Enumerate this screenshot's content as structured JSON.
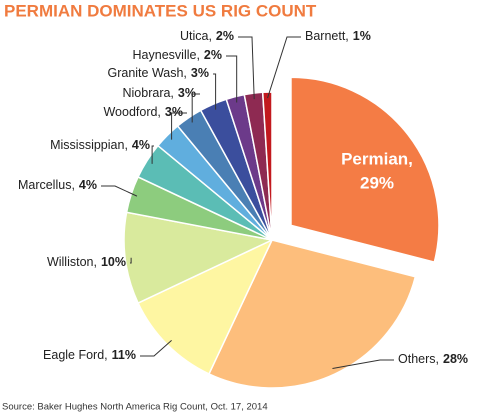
{
  "chart_data": {
    "type": "pie",
    "title": "PERMIAN DOMINATES US RIG COUNT",
    "source": "Source: Baker Hughes North America Rig Count, Oct. 17, 2014",
    "categories": [
      "Permian,",
      "Others,",
      "Eagle Ford,",
      "Williston,",
      "Marcellus,",
      "Mississippian,",
      "Woodford,",
      "Niobrara,",
      "Granite Wash,",
      "Haynesville,",
      "Utica,",
      "Barnett,"
    ],
    "values": [
      29,
      28,
      11,
      10,
      4,
      4,
      3,
      3,
      3,
      2,
      2,
      1
    ],
    "value_labels": [
      "29%",
      "28%",
      "11%",
      "10%",
      "4%",
      "4%",
      "3%",
      "3%",
      "3%",
      "2%",
      "2%",
      "1%"
    ],
    "colors": [
      "#f47c45",
      "#fdbe7c",
      "#fef6a2",
      "#d9ea9d",
      "#8dcc7e",
      "#5bbdb5",
      "#60aede",
      "#4a7fb4",
      "#3b4e9d",
      "#6c3a8a",
      "#8e2a52",
      "#c2191e"
    ],
    "exploded": [
      0
    ]
  }
}
